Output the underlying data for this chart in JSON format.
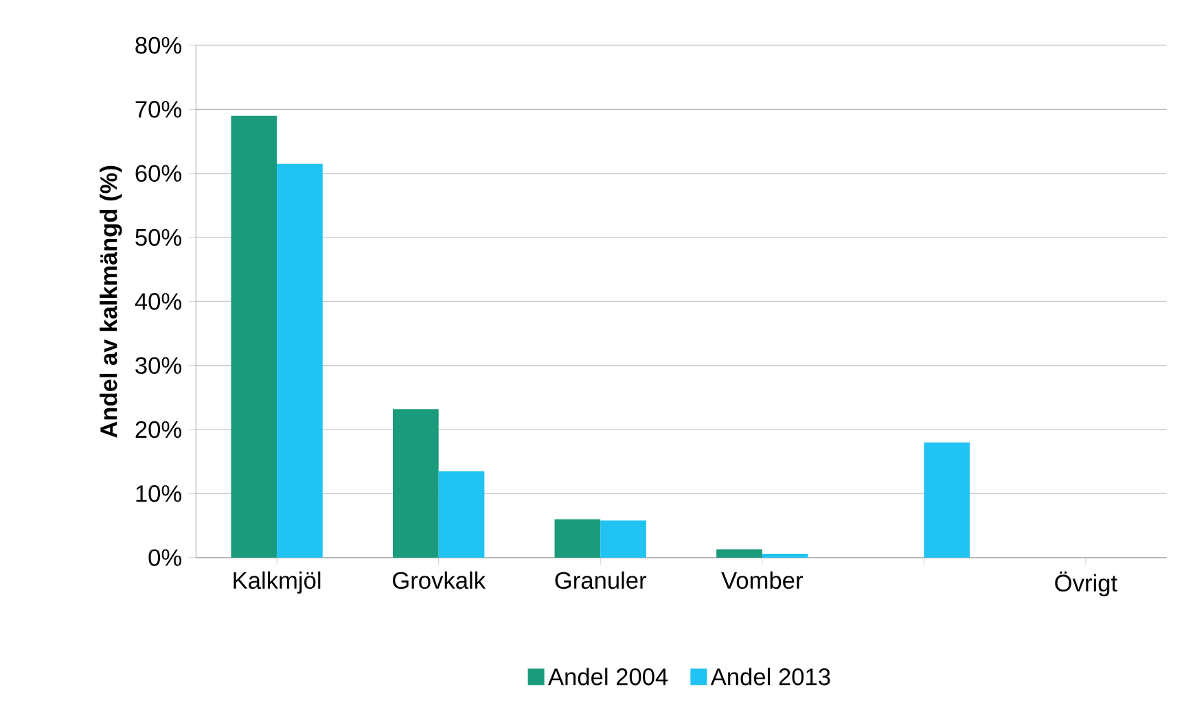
{
  "chart_data": {
    "type": "bar",
    "ylabel": "Andel av kalkmängd (%)",
    "categories": [
      "Kalkmjöl",
      "Grovkalk",
      "Granuler",
      "Vomber",
      null,
      "Övrigt"
    ],
    "series": [
      {
        "name": "Andel 2004",
        "color": "#1a9b7c",
        "values": [
          69,
          23.2,
          6,
          1.3,
          0,
          0
        ]
      },
      {
        "name": "Andel 2013",
        "color": "#21c3f2",
        "values": [
          61.5,
          13.5,
          5.8,
          0.6,
          18,
          0
        ]
      }
    ],
    "ylim": [
      0,
      80
    ],
    "yticks": [
      {
        "value": 0,
        "label": "0%"
      },
      {
        "value": 10,
        "label": "10%"
      },
      {
        "value": 20,
        "label": "20%"
      },
      {
        "value": 30,
        "label": "30%"
      },
      {
        "value": 40,
        "label": "40%"
      },
      {
        "value": 50,
        "label": "50%"
      },
      {
        "value": 60,
        "label": "60%"
      },
      {
        "value": 70,
        "label": "70%"
      },
      {
        "value": 80,
        "label": "80%"
      }
    ],
    "grid": "y",
    "legend": "bottom"
  }
}
